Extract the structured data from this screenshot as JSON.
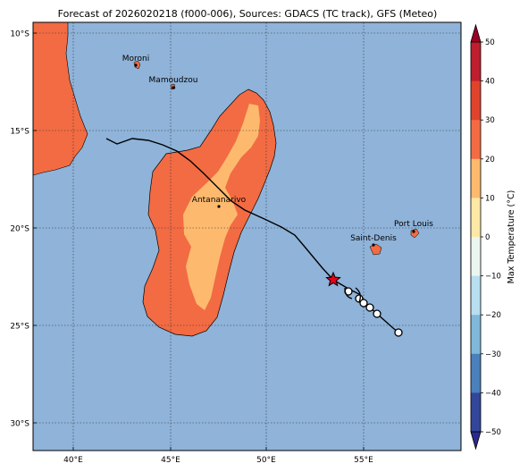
{
  "title": "Forecast of 2026020218 (f000-006), Sources: GDACS (TC track), GFS (Meteo)",
  "colors": {
    "ocean": "#8fb3d9",
    "land_20_30": "#f26b43",
    "land_10_20": "#fdba6e",
    "track": "#000000",
    "current_position": "#e8001c"
  },
  "map": {
    "lat_ticks": [
      "10°S",
      "15°S",
      "20°S",
      "25°S",
      "30°S"
    ],
    "lon_ticks": [
      "40°E",
      "45°E",
      "50°E",
      "55°E"
    ],
    "cities": [
      {
        "name": "Moroni"
      },
      {
        "name": "Mamoudzou"
      },
      {
        "name": "Antananarivo"
      },
      {
        "name": "Saint-Denis"
      },
      {
        "name": "Port Louis"
      }
    ],
    "track_label": "TC track",
    "current_position_marker": "star-icon",
    "forecast_marker": "circle-icon"
  },
  "colorbar": {
    "label": "Max Temperature (°C)",
    "ticks": [
      "50",
      "40",
      "30",
      "20",
      "10",
      "0",
      "−10",
      "−20",
      "−30",
      "−40",
      "−50"
    ],
    "colors": [
      "#9a0026",
      "#bf1e2e",
      "#e0432c",
      "#f26b43",
      "#fdba6e",
      "#fee8a5",
      "#eaf6ef",
      "#b8def0",
      "#80b8d9",
      "#4a80bb",
      "#33469a",
      "#2a2a8c"
    ]
  }
}
